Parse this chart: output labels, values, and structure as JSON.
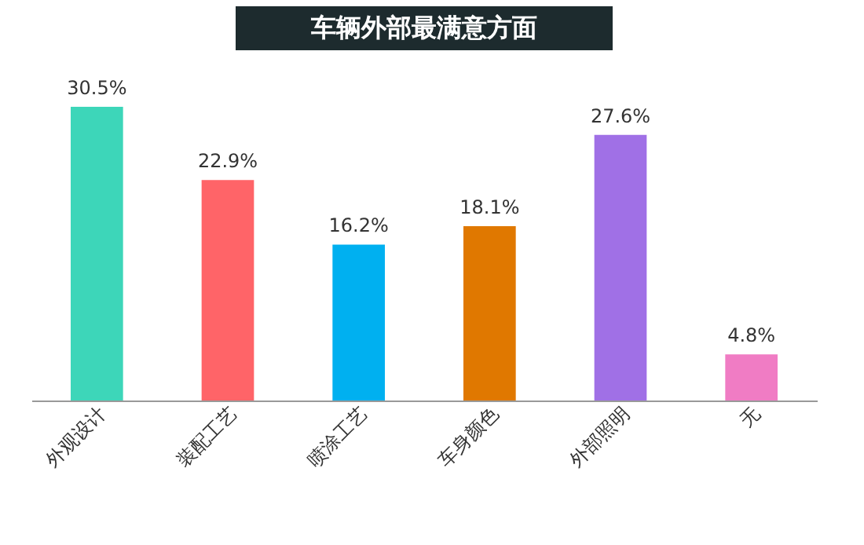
{
  "chart_data": {
    "type": "bar",
    "title": "车辆外部最满意方面",
    "categories": [
      "外观设计",
      "装配工艺",
      "喷涂工艺",
      "车身颜色",
      "外部照明",
      "无"
    ],
    "values": [
      30.5,
      22.9,
      16.2,
      18.1,
      27.6,
      4.8
    ],
    "colors": [
      "#3dd6b9",
      "#ff6468",
      "#00b0f0",
      "#e07800",
      "#a070e6",
      "#f07cc4"
    ],
    "value_labels": [
      "30.5%",
      "22.9%",
      "16.2%",
      "18.1%",
      "27.6%",
      "4.8%"
    ],
    "grid": false,
    "legend": false
  }
}
